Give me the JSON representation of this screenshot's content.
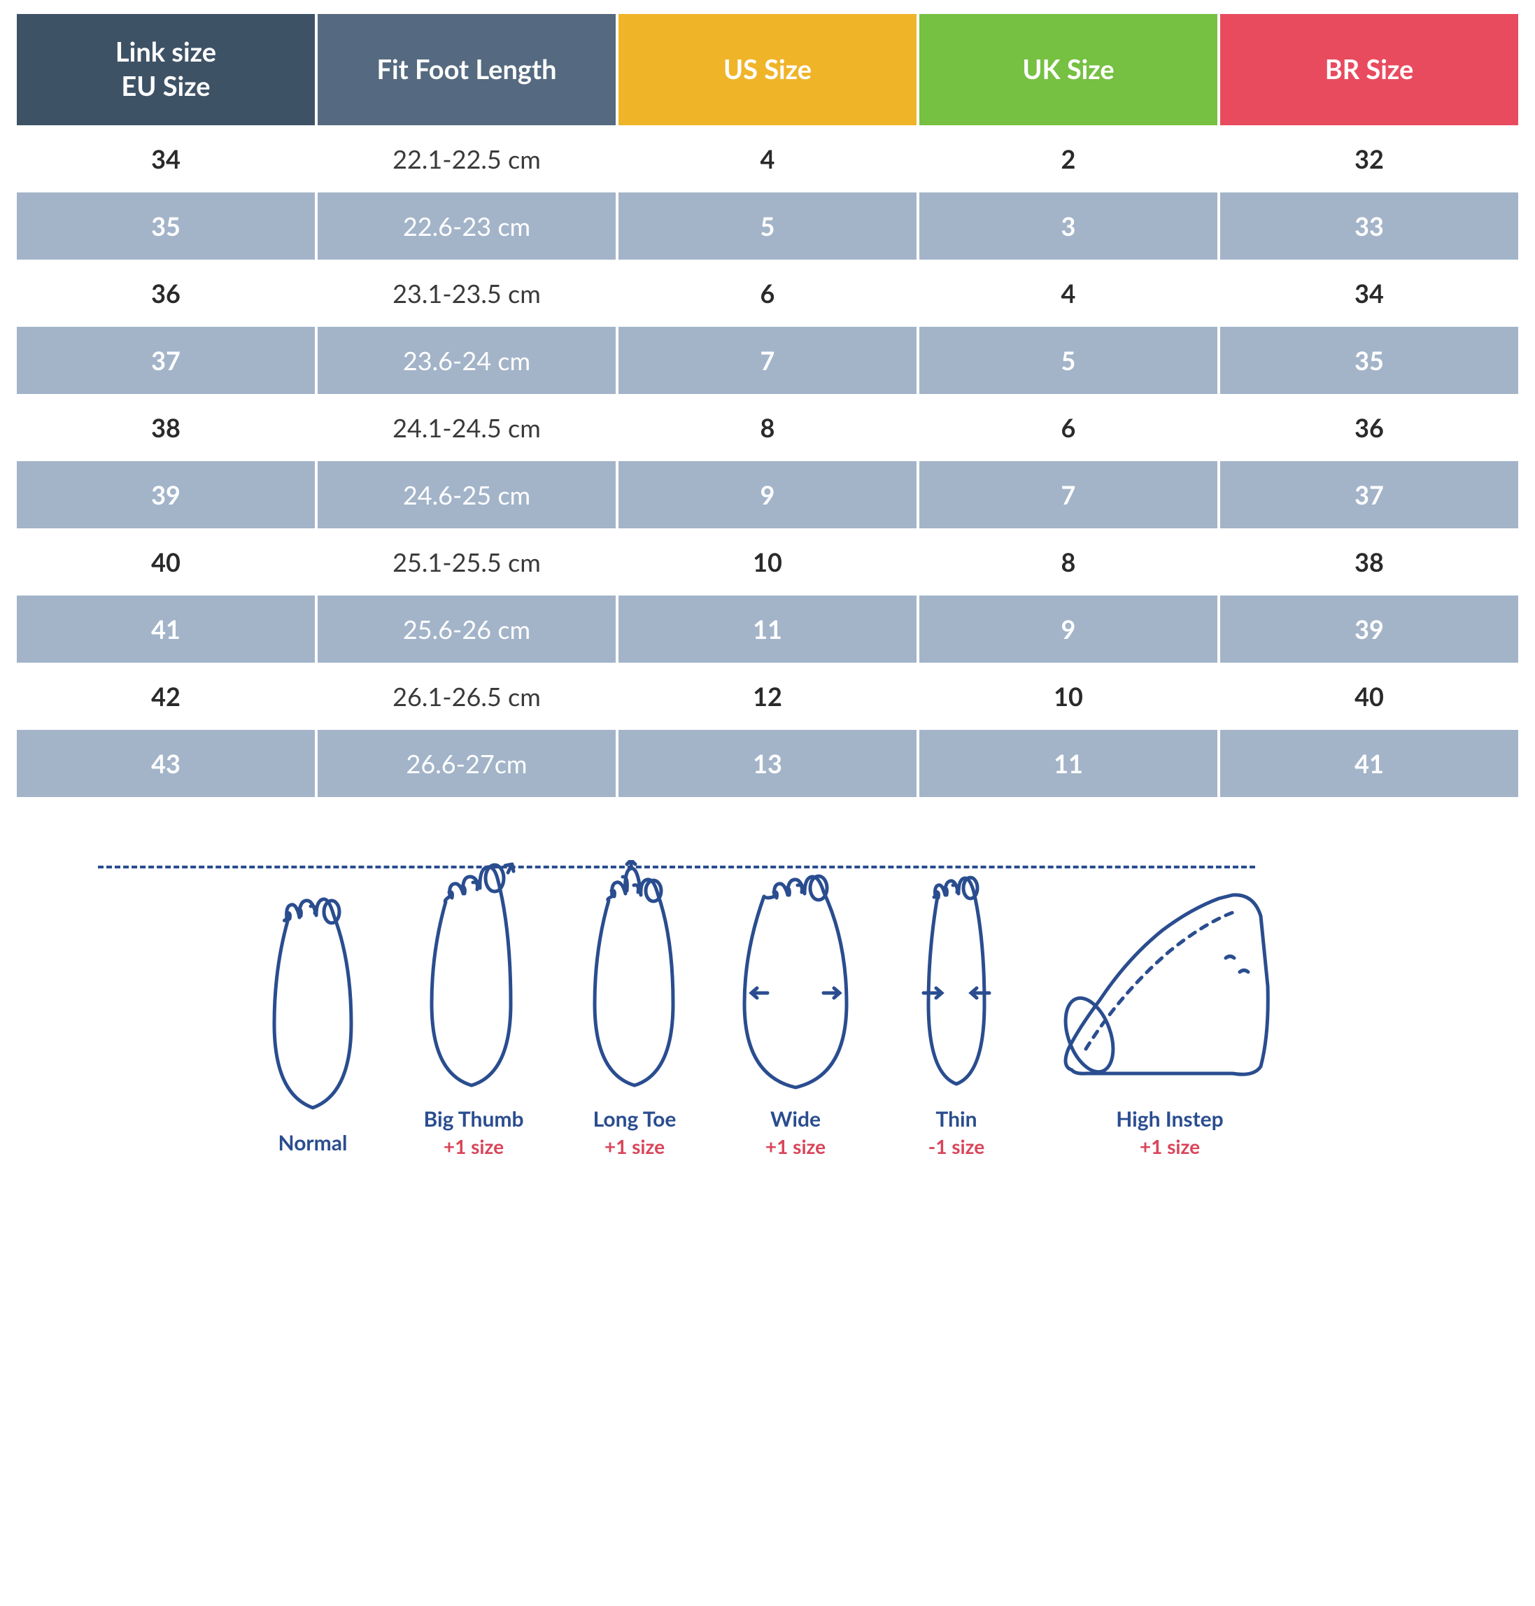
{
  "table": {
    "headers": {
      "eu": {
        "line1": "Link size",
        "line2": "EU Size",
        "bg": "#3e5266"
      },
      "length": {
        "label": "Fit Foot Length",
        "bg": "#556a80"
      },
      "us": {
        "label": "US Size",
        "bg": "#f0b429"
      },
      "uk": {
        "label": "UK Size",
        "bg": "#76c042"
      },
      "br": {
        "label": "BR Size",
        "bg": "#e94b5e"
      }
    },
    "even_row_bg": "#a3b4c9",
    "rows": [
      {
        "eu": "34",
        "length": "22.1-22.5 cm",
        "us": "4",
        "uk": "2",
        "br": "32"
      },
      {
        "eu": "35",
        "length": "22.6-23 cm",
        "us": "5",
        "uk": "3",
        "br": "33"
      },
      {
        "eu": "36",
        "length": "23.1-23.5 cm",
        "us": "6",
        "uk": "4",
        "br": "34"
      },
      {
        "eu": "37",
        "length": "23.6-24 cm",
        "us": "7",
        "uk": "5",
        "br": "35"
      },
      {
        "eu": "38",
        "length": "24.1-24.5 cm",
        "us": "8",
        "uk": "6",
        "br": "36"
      },
      {
        "eu": "39",
        "length": "24.6-25 cm",
        "us": "9",
        "uk": "7",
        "br": "37"
      },
      {
        "eu": "40",
        "length": "25.1-25.5 cm",
        "us": "10",
        "uk": "8",
        "br": "38"
      },
      {
        "eu": "41",
        "length": "25.6-26 cm",
        "us": "11",
        "uk": "9",
        "br": "39"
      },
      {
        "eu": "42",
        "length": "26.1-26.5 cm",
        "us": "12",
        "uk": "10",
        "br": "40"
      },
      {
        "eu": "43",
        "length": "26.6-27cm",
        "us": "13",
        "uk": "11",
        "br": "41"
      }
    ]
  },
  "feet": {
    "stroke": "#2a4d8f",
    "label_color": "#2a4d8f",
    "adj_color": "#d9455a",
    "items": [
      {
        "name": "Normal",
        "adj": ""
      },
      {
        "name": "Big Thumb",
        "adj": "+1 size"
      },
      {
        "name": "Long Toe",
        "adj": "+1 size"
      },
      {
        "name": "Wide",
        "adj": "+1 size"
      },
      {
        "name": "Thin",
        "adj": "-1 size"
      },
      {
        "name": "High Instep",
        "adj": "+1 size"
      }
    ]
  }
}
